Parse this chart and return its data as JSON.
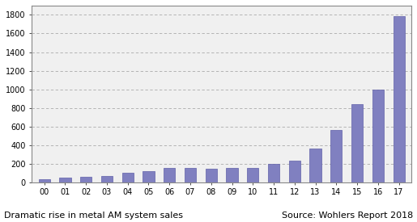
{
  "categories": [
    "00",
    "01",
    "02",
    "03",
    "04",
    "05",
    "06",
    "07",
    "08",
    "09",
    "10",
    "11",
    "12",
    "13",
    "14",
    "15",
    "16",
    "17"
  ],
  "values": [
    35,
    50,
    55,
    65,
    100,
    115,
    155,
    150,
    145,
    150,
    150,
    195,
    230,
    360,
    565,
    840,
    1000,
    1790
  ],
  "bar_color": "#8080c0",
  "bar_edge_color": "#6060a8",
  "background_color": "#f0f0f0",
  "plot_bg_color": "#f0f0f0",
  "outer_bg_color": "#ffffff",
  "ylim": [
    0,
    1900
  ],
  "yticks": [
    0,
    200,
    400,
    600,
    800,
    1000,
    1200,
    1400,
    1600,
    1800
  ],
  "xlabel_bottom_left": "Dramatic rise in metal AM system sales",
  "xlabel_bottom_right": "Source: Wohlers Report 2018",
  "grid_color": "#aaaaaa",
  "tick_fontsize": 7,
  "label_fontsize": 8,
  "bar_width": 0.55
}
